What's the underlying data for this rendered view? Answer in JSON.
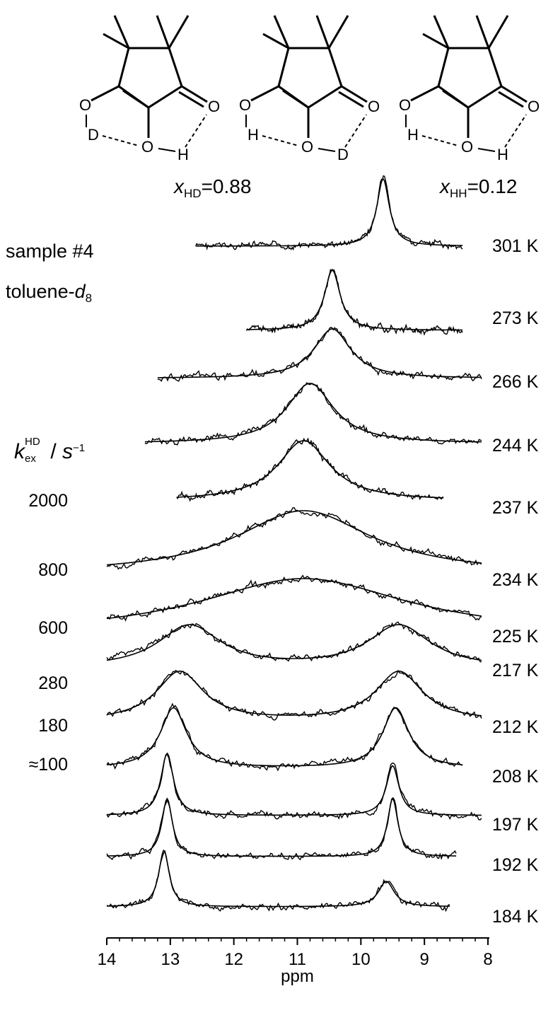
{
  "annotations": {
    "sample": "sample #4",
    "solvent_main": "toluene-",
    "solvent_italic": "d",
    "solvent_sub": "8",
    "x_hd_var": "x",
    "x_hd_sub": "HD",
    "x_hd_val": "=0.88",
    "x_hh_var": "x",
    "x_hh_sub": "HH",
    "x_hh_val": "=0.12",
    "k_var": "k",
    "k_sub": "ex",
    "k_sup": "HD",
    "k_unit_slash": " / ",
    "k_unit": "s",
    "k_unit_sup": "−1"
  },
  "molecules": {
    "atoms": {
      "O": "O",
      "D": "D",
      "H": "H"
    }
  },
  "chart_data": {
    "type": "line",
    "title": "",
    "xlabel": "ppm",
    "ylabel": "",
    "xlim": [
      14,
      8
    ],
    "x_reversed": true,
    "xticks": [
      14,
      13,
      12,
      11,
      10,
      9,
      8
    ],
    "grid": false,
    "series": [
      {
        "temperature": "301 K",
        "k_ex": "",
        "x_range": [
          12.6,
          8.4
        ],
        "peaks": [
          [
            9.65,
            0.12,
            1.0
          ]
        ]
      },
      {
        "temperature": "273 K",
        "k_ex": "",
        "x_range": [
          11.8,
          8.4
        ],
        "peaks": [
          [
            10.45,
            0.15,
            1.0
          ]
        ]
      },
      {
        "temperature": "266 K",
        "k_ex": "",
        "x_range": [
          13.2,
          8.1
        ],
        "peaks": [
          [
            10.45,
            0.35,
            1.0
          ]
        ]
      },
      {
        "temperature": "244 K",
        "k_ex": "",
        "x_range": [
          13.4,
          8.1
        ],
        "peaks": [
          [
            10.8,
            0.45,
            1.0
          ]
        ]
      },
      {
        "temperature": "237 K",
        "k_ex": "2000",
        "x_range": [
          12.9,
          8.7
        ],
        "peaks": [
          [
            10.9,
            0.5,
            1.0
          ]
        ]
      },
      {
        "temperature": "234 K",
        "k_ex": "800",
        "x_range": [
          14.0,
          8.1
        ],
        "peaks": [
          [
            10.9,
            1.3,
            1.0
          ]
        ]
      },
      {
        "temperature": "225 K",
        "k_ex": "600",
        "x_range": [
          14.0,
          8.1
        ],
        "peaks": [
          [
            10.9,
            2.0,
            1.0
          ]
        ]
      },
      {
        "temperature": "217 K",
        "k_ex": "280",
        "x_range": [
          14.0,
          8.1
        ],
        "peaks": [
          [
            12.7,
            0.6,
            1.0
          ],
          [
            9.4,
            0.6,
            1.0
          ]
        ]
      },
      {
        "temperature": "212 K",
        "k_ex": "180",
        "x_range": [
          14.0,
          8.1
        ],
        "peaks": [
          [
            12.85,
            0.45,
            1.0
          ],
          [
            9.4,
            0.45,
            1.0
          ]
        ]
      },
      {
        "temperature": "208 K",
        "k_ex": "≈100",
        "x_range": [
          14.0,
          8.4
        ],
        "peaks": [
          [
            12.95,
            0.25,
            1.0
          ],
          [
            9.45,
            0.25,
            1.0
          ]
        ]
      },
      {
        "temperature": "197 K",
        "k_ex": "",
        "x_range": [
          14.0,
          8.1
        ],
        "peaks": [
          [
            13.05,
            0.12,
            1.0
          ],
          [
            9.5,
            0.12,
            0.8
          ]
        ]
      },
      {
        "temperature": "192 K",
        "k_ex": "",
        "x_range": [
          14.0,
          8.5
        ],
        "peaks": [
          [
            13.05,
            0.1,
            1.0
          ],
          [
            9.5,
            0.1,
            1.0
          ]
        ]
      },
      {
        "temperature": "184 K",
        "k_ex": "",
        "x_range": [
          14.0,
          8.6
        ],
        "peaks": [
          [
            13.1,
            0.1,
            1.0
          ],
          [
            9.6,
            0.15,
            0.45
          ]
        ]
      }
    ]
  }
}
